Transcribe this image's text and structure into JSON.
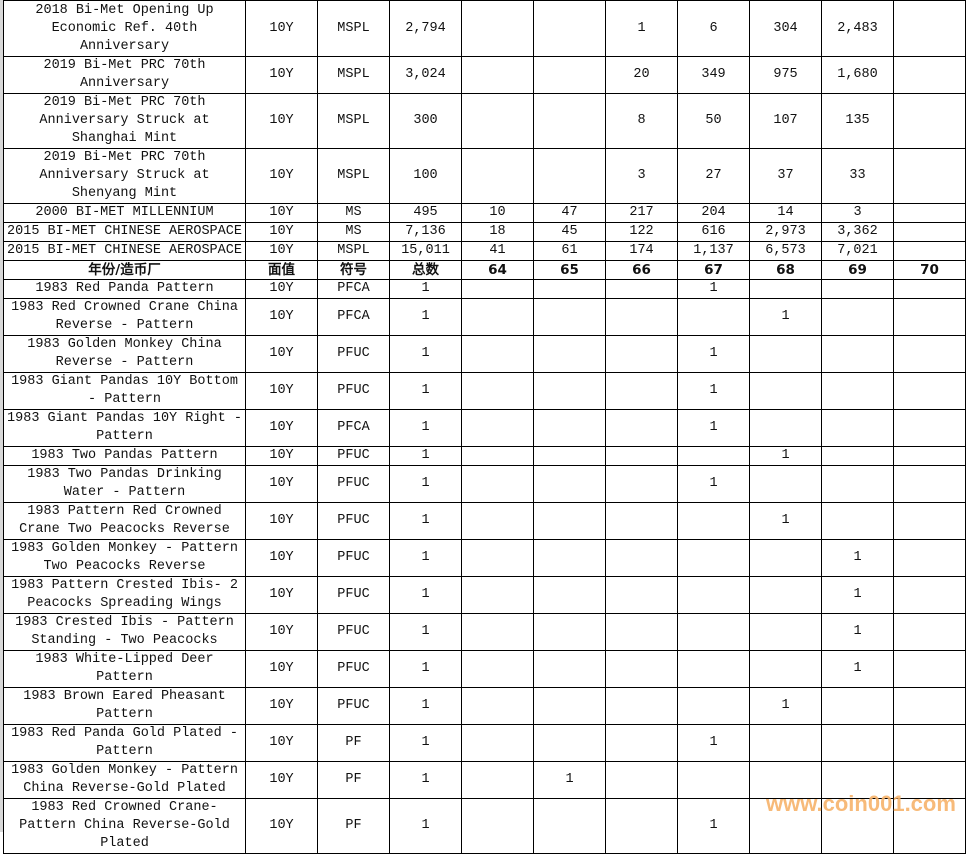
{
  "header": [
    "年份/造币厂",
    "面值",
    "符号",
    "总数",
    "64",
    "65",
    "66",
    "67",
    "68",
    "69",
    "70"
  ],
  "top_rows": [
    [
      "2018 Bi-Met Opening Up Economic Ref. 40th Anniversary",
      "10Y",
      "MSPL",
      "2,794",
      "",
      "",
      "1",
      "6",
      "304",
      "2,483",
      ""
    ],
    [
      "2019 Bi-Met PRC 70th Anniversary",
      "10Y",
      "MSPL",
      "3,024",
      "",
      "",
      "20",
      "349",
      "975",
      "1,680",
      ""
    ],
    [
      "2019 Bi-Met PRC 70th Anniversary Struck at Shanghai Mint",
      "10Y",
      "MSPL",
      "300",
      "",
      "",
      "8",
      "50",
      "107",
      "135",
      ""
    ],
    [
      "2019 Bi-Met PRC 70th Anniversary Struck at Shenyang Mint",
      "10Y",
      "MSPL",
      "100",
      "",
      "",
      "3",
      "27",
      "37",
      "33",
      ""
    ],
    [
      "2000 BI-MET MILLENNIUM",
      "10Y",
      "MS",
      "495",
      "10",
      "47",
      "217",
      "204",
      "14",
      "3",
      ""
    ],
    [
      "2015 BI-MET CHINESE AEROSPACE",
      "10Y",
      "MS",
      "7,136",
      "18",
      "45",
      "122",
      "616",
      "2,973",
      "3,362",
      ""
    ],
    [
      "2015 BI-MET CHINESE AEROSPACE",
      "10Y",
      "MSPL",
      "15,011",
      "41",
      "61",
      "174",
      "1,137",
      "6,573",
      "7,021",
      ""
    ]
  ],
  "bottom_rows": [
    [
      "1983 Red Panda Pattern",
      "10Y",
      "PFCA",
      "1",
      "",
      "",
      "",
      "1",
      "",
      "",
      ""
    ],
    [
      "1983 Red Crowned Crane China Reverse - Pattern",
      "10Y",
      "PFCA",
      "1",
      "",
      "",
      "",
      "",
      "1",
      "",
      ""
    ],
    [
      "1983 Golden Monkey China Reverse - Pattern",
      "10Y",
      "PFUC",
      "1",
      "",
      "",
      "",
      "1",
      "",
      "",
      ""
    ],
    [
      "1983 Giant Pandas 10Y Bottom - Pattern",
      "10Y",
      "PFUC",
      "1",
      "",
      "",
      "",
      "1",
      "",
      "",
      ""
    ],
    [
      "1983 Giant Pandas 10Y Right - Pattern",
      "10Y",
      "PFCA",
      "1",
      "",
      "",
      "",
      "1",
      "",
      "",
      ""
    ],
    [
      "1983 Two Pandas Pattern",
      "10Y",
      "PFUC",
      "1",
      "",
      "",
      "",
      "",
      "1",
      "",
      ""
    ],
    [
      "1983 Two Pandas Drinking Water - Pattern",
      "10Y",
      "PFUC",
      "1",
      "",
      "",
      "",
      "1",
      "",
      "",
      ""
    ],
    [
      "1983 Pattern Red Crowned Crane Two Peacocks Reverse",
      "10Y",
      "PFUC",
      "1",
      "",
      "",
      "",
      "",
      "1",
      "",
      ""
    ],
    [
      "1983 Golden Monkey - Pattern Two Peacocks Reverse",
      "10Y",
      "PFUC",
      "1",
      "",
      "",
      "",
      "",
      "",
      "1",
      ""
    ],
    [
      "1983 Pattern Crested Ibis- 2 Peacocks Spreading Wings",
      "10Y",
      "PFUC",
      "1",
      "",
      "",
      "",
      "",
      "",
      "1",
      ""
    ],
    [
      "1983 Crested Ibis - Pattern Standing - Two Peacocks",
      "10Y",
      "PFUC",
      "1",
      "",
      "",
      "",
      "",
      "",
      "1",
      ""
    ],
    [
      "1983 White-Lipped Deer Pattern",
      "10Y",
      "PFUC",
      "1",
      "",
      "",
      "",
      "",
      "",
      "1",
      ""
    ],
    [
      "1983 Brown Eared Pheasant Pattern",
      "10Y",
      "PFUC",
      "1",
      "",
      "",
      "",
      "",
      "1",
      "",
      ""
    ],
    [
      "1983 Red Panda Gold Plated - Pattern",
      "10Y",
      "PF",
      "1",
      "",
      "",
      "",
      "1",
      "",
      "",
      ""
    ],
    [
      "1983 Golden Monkey - Pattern China Reverse-Gold Plated",
      "10Y",
      "PF",
      "1",
      "",
      "1",
      "",
      "",
      "",
      "",
      ""
    ],
    [
      "1983 Red Crowned Crane-Pattern China Reverse-Gold Plated",
      "10Y",
      "PF",
      "1",
      "",
      "",
      "",
      "1",
      "",
      "",
      ""
    ]
  ],
  "watermark": "www.coin001.com",
  "colors": {
    "watermark": "#f7b36b",
    "grid": "#000000"
  }
}
